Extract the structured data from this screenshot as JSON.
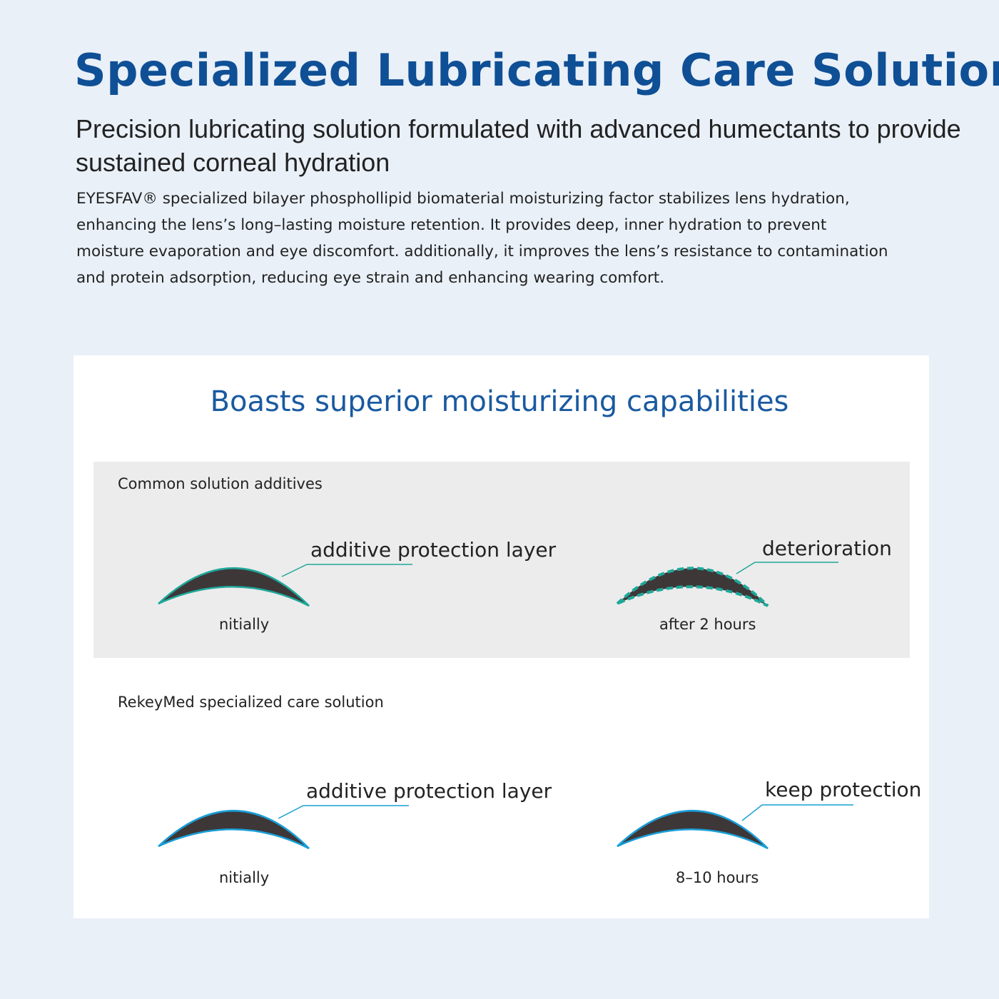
{
  "header": {
    "title": "Specialized Lubricating Care Solution",
    "subtitle_lines": [
      "Precision lubricating solution formulated with advanced humectants to provide",
      "sustained corneal hydration"
    ],
    "body_lines": [
      "EYESFAV® specialized bilayer phosphollipid biomaterial moisturizing factor stabilizes lens hydration,",
      "enhancing the lens’s long–lasting moisture retention. It provides deep, inner hydration to prevent",
      "moisture evaporation and eye discomfort. additionally, it improves the lens’s resistance to contamination",
      "and protein adsorption, reducing eye strain and enhancing wearing comfort."
    ]
  },
  "card": {
    "title": "Boasts superior moisturizing capabilities",
    "common": {
      "label": "Common solution additives",
      "left": {
        "callout": "additive protection layer",
        "caption": "nitially"
      },
      "right": {
        "callout": "deterioration",
        "caption": "after 2 hours"
      }
    },
    "rekeymed": {
      "label": "RekeyMed specialized care solution",
      "left": {
        "callout": "additive protection layer",
        "caption": "nitially"
      },
      "right": {
        "callout": "keep protection",
        "caption": "8–10 hours"
      }
    }
  },
  "colors": {
    "title": "#0f4f95",
    "teal": "#1ea89a",
    "blue": "#1a9fd8",
    "lens": "#3d3738",
    "panel": "#ececec"
  }
}
